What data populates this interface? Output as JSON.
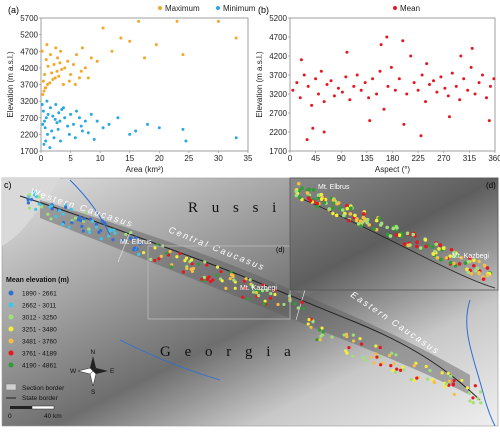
{
  "panels": {
    "a": {
      "label": "(a)"
    },
    "b": {
      "label": "(b)"
    },
    "c": {
      "label": "c)"
    },
    "d": {
      "label": "(d)"
    }
  },
  "chart_data": [
    {
      "type": "scatter",
      "panel": "a",
      "xlabel": "Area (km²)",
      "ylabel": "Elevation (m a.s.l.)",
      "xlim": [
        0,
        35
      ],
      "ylim": [
        1700,
        5700
      ],
      "xticks": [
        0,
        5,
        10,
        15,
        20,
        25,
        30,
        35
      ],
      "yticks": [
        1700,
        2200,
        2700,
        3200,
        3700,
        4200,
        4700,
        5200,
        5700
      ],
      "legend_position": "top",
      "series": [
        {
          "name": "Maximum",
          "color": "#f5a623",
          "points": [
            [
              0.3,
              3400
            ],
            [
              0.5,
              3500
            ],
            [
              0.8,
              3600
            ],
            [
              1.1,
              3700
            ],
            [
              0.4,
              3800
            ],
            [
              1.5,
              3750
            ],
            [
              2.0,
              3850
            ],
            [
              2.4,
              3900
            ],
            [
              3.0,
              3950
            ],
            [
              0.6,
              4000
            ],
            [
              1.8,
              4050
            ],
            [
              2.7,
              4100
            ],
            [
              3.5,
              4150
            ],
            [
              4.0,
              4200
            ],
            [
              1.2,
              4250
            ],
            [
              2.2,
              4300
            ],
            [
              3.2,
              4350
            ],
            [
              4.5,
              4400
            ],
            [
              0.9,
              4450
            ],
            [
              2.8,
              4500
            ],
            [
              5.0,
              4000
            ],
            [
              5.5,
              4300
            ],
            [
              6.0,
              4600
            ],
            [
              6.5,
              3900
            ],
            [
              7.0,
              4800
            ],
            [
              7.5,
              4200
            ],
            [
              8.5,
              4500
            ],
            [
              9.5,
              4400
            ],
            [
              10.5,
              5400
            ],
            [
              12.0,
              4700
            ],
            [
              13.5,
              5100
            ],
            [
              15.0,
              5000
            ],
            [
              16.5,
              5600
            ],
            [
              17.5,
              4500
            ],
            [
              19.5,
              4900
            ],
            [
              23.0,
              5600
            ],
            [
              24.0,
              4600
            ],
            [
              30.0,
              5600
            ],
            [
              33.0,
              5100
            ],
            [
              0.2,
              4700
            ],
            [
              1.0,
              4900
            ],
            [
              2.5,
              4800
            ],
            [
              3.8,
              3700
            ],
            [
              4.8,
              3800
            ],
            [
              0.7,
              3600
            ],
            [
              1.6,
              4600
            ],
            [
              3.3,
              4700
            ],
            [
              5.8,
              3700
            ],
            [
              6.8,
              4100
            ],
            [
              8.0,
              3900
            ]
          ]
        },
        {
          "name": "Minimum",
          "color": "#29a8e0",
          "points": [
            [
              0.3,
              2500
            ],
            [
              0.6,
              2600
            ],
            [
              0.9,
              2700
            ],
            [
              1.2,
              2800
            ],
            [
              0.4,
              2900
            ],
            [
              1.6,
              3000
            ],
            [
              2.0,
              2750
            ],
            [
              2.4,
              2650
            ],
            [
              3.0,
              2850
            ],
            [
              0.7,
              2400
            ],
            [
              1.8,
              2300
            ],
            [
              2.7,
              2550
            ],
            [
              3.5,
              2950
            ],
            [
              4.0,
              2700
            ],
            [
              1.1,
              2200
            ],
            [
              2.2,
              2100
            ],
            [
              3.2,
              2600
            ],
            [
              4.5,
              2450
            ],
            [
              0.8,
              2000
            ],
            [
              2.9,
              2350
            ],
            [
              5.0,
              2800
            ],
            [
              5.5,
              2500
            ],
            [
              6.0,
              2900
            ],
            [
              6.5,
              2700
            ],
            [
              7.0,
              2300
            ],
            [
              7.5,
              2600
            ],
            [
              8.5,
              2800
            ],
            [
              9.5,
              2600
            ],
            [
              10.5,
              2400
            ],
            [
              11.5,
              2500
            ],
            [
              13.0,
              2700
            ],
            [
              15.0,
              2200
            ],
            [
              16.0,
              2300
            ],
            [
              18.0,
              2500
            ],
            [
              20.0,
              2400
            ],
            [
              24.0,
              2350
            ],
            [
              24.5,
              2000
            ],
            [
              33.0,
              2100
            ],
            [
              0.2,
              3100
            ],
            [
              1.0,
              3200
            ],
            [
              2.5,
              3100
            ],
            [
              3.8,
              3000
            ],
            [
              4.8,
              2200
            ],
            [
              0.5,
              1900
            ],
            [
              1.5,
              1800
            ],
            [
              3.3,
              2000
            ],
            [
              5.8,
              2100
            ],
            [
              6.8,
              2450
            ],
            [
              8.0,
              2250
            ],
            [
              9.0,
              2050
            ]
          ]
        }
      ]
    },
    {
      "type": "scatter",
      "panel": "b",
      "xlabel": "Aspect (°)",
      "ylabel": "Elevation (m a.s.l.)",
      "xlim": [
        0,
        360
      ],
      "ylim": [
        1700,
        5200
      ],
      "xticks": [
        0,
        45,
        90,
        135,
        180,
        225,
        270,
        315,
        360
      ],
      "yticks": [
        1700,
        2200,
        2700,
        3200,
        3700,
        4200,
        4700,
        5200
      ],
      "legend_position": "top",
      "series": [
        {
          "name": "Mean",
          "color": "#e8161f",
          "points": [
            [
              5,
              3300
            ],
            [
              12,
              3500
            ],
            [
              18,
              3100
            ],
            [
              25,
              3700
            ],
            [
              32,
              3400
            ],
            [
              38,
              2900
            ],
            [
              45,
              3600
            ],
            [
              50,
              3200
            ],
            [
              55,
              3800
            ],
            [
              60,
              3000
            ],
            [
              65,
              3450
            ],
            [
              72,
              3550
            ],
            [
              78,
              3150
            ],
            [
              85,
              3350
            ],
            [
              92,
              3250
            ],
            [
              98,
              3650
            ],
            [
              105,
              3050
            ],
            [
              112,
              3400
            ],
            [
              118,
              3700
            ],
            [
              125,
              3300
            ],
            [
              132,
              3500
            ],
            [
              138,
              3100
            ],
            [
              145,
              3600
            ],
            [
              152,
              3200
            ],
            [
              158,
              3800
            ],
            [
              165,
              2800
            ],
            [
              172,
              3400
            ],
            [
              178,
              3900
            ],
            [
              185,
              3300
            ],
            [
              192,
              3600
            ],
            [
              198,
              4600
            ],
            [
              205,
              3200
            ],
            [
              212,
              4200
            ],
            [
              218,
              3500
            ],
            [
              225,
              3300
            ],
            [
              232,
              3700
            ],
            [
              238,
              3000
            ],
            [
              245,
              3450
            ],
            [
              252,
              3550
            ],
            [
              258,
              3250
            ],
            [
              265,
              3650
            ],
            [
              272,
              3350
            ],
            [
              278,
              3150
            ],
            [
              285,
              3750
            ],
            [
              292,
              3400
            ],
            [
              298,
              3050
            ],
            [
              305,
              3600
            ],
            [
              312,
              3300
            ],
            [
              318,
              3900
            ],
            [
              325,
              3200
            ],
            [
              332,
              3500
            ],
            [
              338,
              3700
            ],
            [
              345,
              3100
            ],
            [
              352,
              3400
            ],
            [
              358,
              3600
            ],
            [
              20,
              4100
            ],
            [
              40,
              2300
            ],
            [
              60,
              2200
            ],
            [
              100,
              4300
            ],
            [
              140,
              2500
            ],
            [
              160,
              4500
            ],
            [
              200,
              2400
            ],
            [
              240,
              4000
            ],
            [
              280,
              2600
            ],
            [
              320,
              4400
            ],
            [
              350,
              2500
            ],
            [
              30,
              2000
            ],
            [
              170,
              4700
            ],
            [
              230,
              2100
            ],
            [
              300,
              4200
            ]
          ]
        }
      ]
    }
  ],
  "map": {
    "countries": {
      "russia": "R u s s i a",
      "georgia": "G e o r g i a"
    },
    "regions": {
      "western": "Western Caucasus",
      "central": "Central Caucasus",
      "eastern": "Eastern Caucasus"
    },
    "peaks": {
      "elbrus": "Mt. Elbrus",
      "kazbegi": "Mt. Kazbegi"
    },
    "legend": {
      "title": "Mean elevation (m)",
      "classes": [
        {
          "label": "1890 - 2661",
          "color": "#2f6fd6"
        },
        {
          "label": "2662 - 3011",
          "color": "#3fc6e8"
        },
        {
          "label": "3012 - 3250",
          "color": "#9fe07a"
        },
        {
          "label": "3251 - 3480",
          "color": "#f3ef3c"
        },
        {
          "label": "3481 - 3760",
          "color": "#f5c040"
        },
        {
          "label": "3761 - 4189",
          "color": "#e8161f"
        },
        {
          "label": "4190 - 4861",
          "color": "#2e9e33"
        }
      ],
      "section_border": "Section border",
      "state_border": "State border"
    },
    "scale": {
      "start": "0",
      "end": "40 km"
    },
    "compass": {
      "n": "N",
      "s": "S",
      "e": "E",
      "w": "W"
    }
  }
}
